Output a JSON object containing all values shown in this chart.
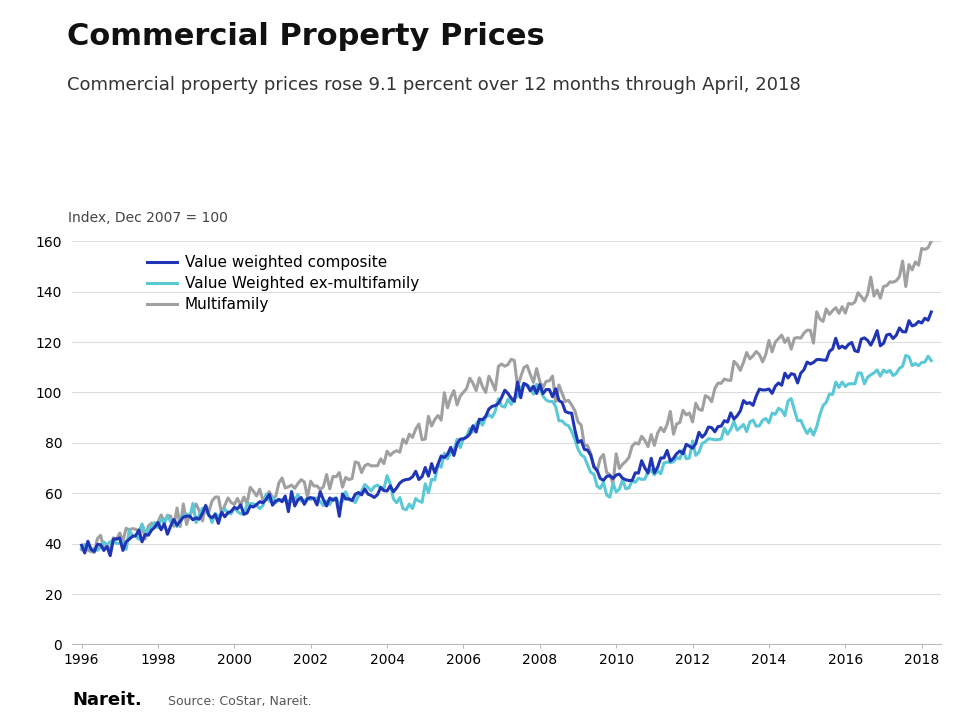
{
  "title": "Commercial Property Prices",
  "subtitle": "Commercial property prices rose 9.1 percent over 12 months through April, 2018",
  "index_label": "Index, Dec 2007 = 100",
  "source": "Source: CoStar, Nareit.",
  "nareit_label": "Nareit.",
  "ylim": [
    0,
    160
  ],
  "yticks": [
    0,
    20,
    40,
    60,
    80,
    100,
    120,
    140,
    160
  ],
  "xticks": [
    1996,
    1998,
    2000,
    2002,
    2004,
    2006,
    2008,
    2010,
    2012,
    2014,
    2016,
    2018
  ],
  "series": {
    "value_weighted_composite": {
      "label": "Value weighted composite",
      "color": "#1f35b5",
      "linewidth": 2.2
    },
    "value_weighted_ex_multifamily": {
      "label": "Value Weighted ex-multifamily",
      "color": "#5bc8d5",
      "linewidth": 2.2
    },
    "multifamily": {
      "label": "Multifamily",
      "color": "#a0a0a0",
      "linewidth": 2.2
    }
  },
  "title_fontsize": 22,
  "subtitle_fontsize": 13,
  "index_label_fontsize": 10,
  "tick_fontsize": 10,
  "legend_fontsize": 11,
  "background_color": "#ffffff",
  "grid_color": "#dddddd"
}
